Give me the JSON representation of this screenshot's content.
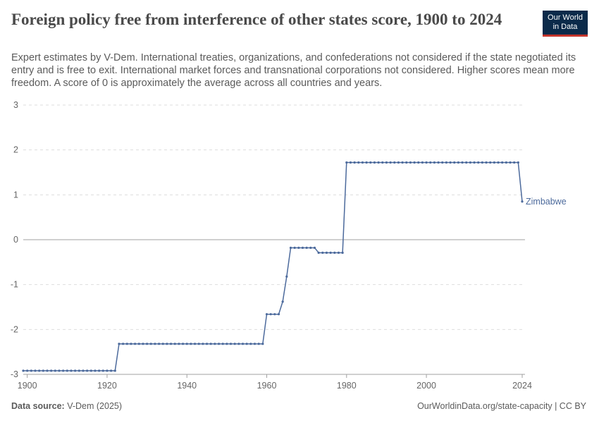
{
  "header": {
    "title": "Foreign policy free from interference of other states score, 1900 to 2024",
    "subtitle": "Expert estimates by V-Dem. International treaties, organizations, and confederations not considered if the state negotiated its entry and is free to exit. International market forces and transnational corporations not considered. Higher scores mean more freedom. A score of 0 is approximately the average across all countries and years.",
    "logo_line1": "Our World",
    "logo_line2": "in Data"
  },
  "footer": {
    "source_label": "Data source:",
    "source_value": "V-Dem (2025)",
    "link": "OurWorldinData.org/state-capacity | CC BY"
  },
  "colors": {
    "series": "#4c6a9c",
    "grid": "#dddddd",
    "zero_line": "#a1a1a1",
    "axis_text": "#666666"
  },
  "chart_data": {
    "type": "line",
    "title": "Foreign policy free from interference of other states score, 1900 to 2024",
    "xlabel": "",
    "ylabel": "",
    "xlim": [
      1899,
      2024
    ],
    "ylim": [
      -3,
      3
    ],
    "xticks": [
      "1900",
      "1920",
      "1940",
      "1960",
      "1980",
      "2000",
      "2024"
    ],
    "yticks": [
      "3",
      "2",
      "1",
      "0",
      "-1",
      "-2",
      "-3"
    ],
    "grid": true,
    "series": [
      {
        "name": "Zimbabwe",
        "segments": [
          {
            "start": 1899,
            "end": 1922,
            "value": -2.92
          },
          {
            "start": 1923,
            "end": 1959,
            "value": -2.32
          },
          {
            "start": 1960,
            "end": 1963,
            "value": -1.66
          }
        ],
        "points": [
          {
            "x": 1964,
            "y": -1.38
          },
          {
            "x": 1965,
            "y": -0.82
          }
        ],
        "segments_2": [
          {
            "start": 1966,
            "end": 1972,
            "value": -0.18
          },
          {
            "start": 1973,
            "end": 1979,
            "value": -0.29
          },
          {
            "start": 1980,
            "end": 2023,
            "value": 1.72
          }
        ],
        "final_point": {
          "x": 2024,
          "y": 0.85
        }
      }
    ]
  }
}
